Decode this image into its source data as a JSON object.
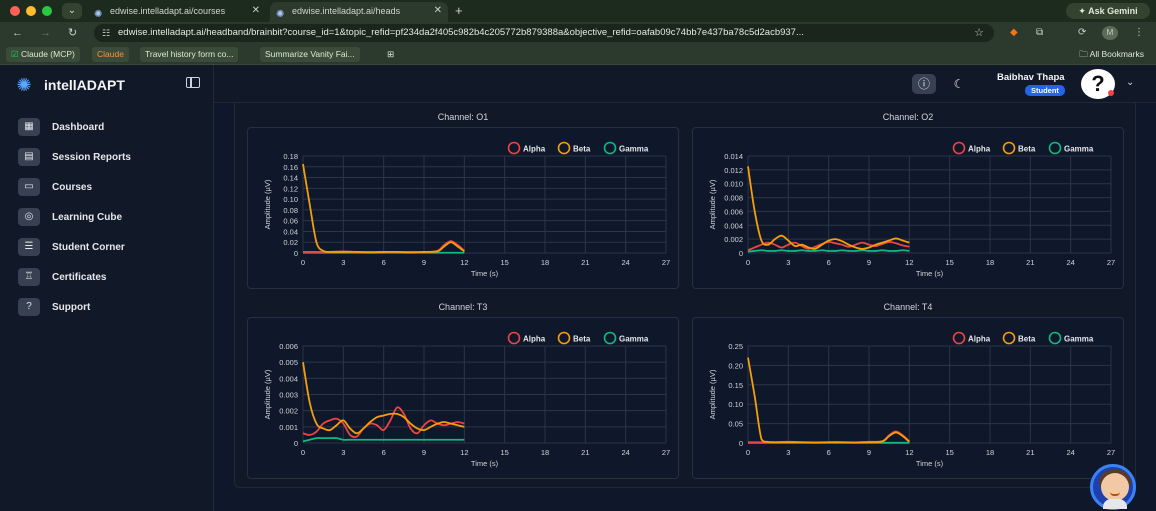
{
  "browser": {
    "tabs": [
      {
        "title": "edwise.intelladapt.ai/courses",
        "active": false
      },
      {
        "title": "edwise.intelladapt.ai/heads",
        "active": true
      }
    ],
    "url": "edwise.intelladapt.ai/headband/brainbit?course_id=1&topic_refid=pf234da2f405c982b4c205772b879388a&objective_refid=oafab09c74bb7e437ba78c5d2acb937...",
    "ask_gemini": "Ask Gemini",
    "bookmarks": [
      "Claude (MCP)",
      "Claude",
      "Travel history form co...",
      "Summarize Vanity Fai..."
    ],
    "all_bookmarks": "All Bookmarks",
    "profile_initial": "M"
  },
  "app": {
    "brand": "intellADAPT",
    "nav": [
      {
        "label": "Dashboard",
        "icon": "dashboard-icon"
      },
      {
        "label": "Session Reports",
        "icon": "report-icon"
      },
      {
        "label": "Courses",
        "icon": "courses-icon"
      },
      {
        "label": "Learning Cube",
        "icon": "cube-icon"
      },
      {
        "label": "Student Corner",
        "icon": "student-corner-icon"
      },
      {
        "label": "Certificates",
        "icon": "certificate-icon"
      },
      {
        "label": "Support",
        "icon": "support-icon"
      }
    ],
    "user": {
      "name": "Baibhav Thapa",
      "role": "Student",
      "avatar": "?"
    }
  },
  "legend": [
    "Alpha",
    "Beta",
    "Gamma"
  ],
  "colors": {
    "alpha": "#ef4444",
    "beta": "#f59e0b",
    "gamma": "#10b981"
  },
  "chart_data": [
    {
      "type": "line",
      "title": "Channel: O1",
      "xlabel": "Time (s)",
      "ylabel": "Amplitude (µV)",
      "xlim": [
        0,
        27
      ],
      "xticks": [
        "0",
        "3",
        "6",
        "9",
        "12",
        "15",
        "18",
        "21",
        "24",
        "27"
      ],
      "ylim": [
        0,
        0.18
      ],
      "yticks": [
        "0",
        "0.02",
        "0.04",
        "0.06",
        "0.08",
        "0.10",
        "0.12",
        "0.14",
        "0.16",
        "0.18"
      ],
      "x": [
        0,
        0.5,
        1,
        1.5,
        2,
        3,
        4,
        5,
        6,
        7,
        8,
        9,
        10,
        10.5,
        11,
        11.5,
        12
      ],
      "series": [
        {
          "name": "Alpha",
          "values": [
            0.002,
            0.002,
            0.002,
            0.002,
            0.002,
            0.003,
            0.002,
            0.002,
            0.002,
            0.002,
            0.002,
            0.002,
            0.004,
            0.015,
            0.022,
            0.015,
            0.004
          ]
        },
        {
          "name": "Beta",
          "values": [
            0.165,
            0.09,
            0.02,
            0.004,
            0.002,
            0.002,
            0.002,
            0.001,
            0.002,
            0.002,
            0.001,
            0.002,
            0.003,
            0.012,
            0.02,
            0.012,
            0.003
          ]
        },
        {
          "name": "Gamma",
          "values": [
            0.0005,
            0.0005,
            0.0005,
            0.0005,
            0.0005,
            0.0005,
            0.0005,
            0.0005,
            0.0005,
            0.0005,
            0.0005,
            0.0005,
            0.0005,
            0.0005,
            0.0005,
            0.0005,
            0.0005
          ]
        }
      ],
      "legend_position": "top-right",
      "grid": true
    },
    {
      "type": "line",
      "title": "Channel: O2",
      "xlabel": "Time (s)",
      "ylabel": "Amplitude (µV)",
      "xlim": [
        0,
        27
      ],
      "xticks": [
        "0",
        "3",
        "6",
        "9",
        "12",
        "15",
        "18",
        "21",
        "24",
        "27"
      ],
      "ylim": [
        0,
        0.014
      ],
      "yticks": [
        "0",
        "0.002",
        "0.004",
        "0.006",
        "0.008",
        "0.010",
        "0.012",
        "0.014"
      ],
      "x": [
        0,
        0.5,
        1,
        1.5,
        2,
        2.5,
        3,
        3.5,
        4,
        4.5,
        5,
        5.5,
        6,
        6.5,
        7,
        7.5,
        8,
        8.5,
        9,
        9.5,
        10,
        10.5,
        11,
        11.5,
        12
      ],
      "series": [
        {
          "name": "Alpha",
          "values": [
            0.0004,
            0.0008,
            0.0012,
            0.0015,
            0.0012,
            0.0008,
            0.0012,
            0.0015,
            0.001,
            0.0006,
            0.0009,
            0.0013,
            0.0016,
            0.0014,
            0.0012,
            0.0009,
            0.0012,
            0.0015,
            0.0012,
            0.001,
            0.0013,
            0.0016,
            0.0014,
            0.0011,
            0.0009
          ]
        },
        {
          "name": "Beta",
          "values": [
            0.0125,
            0.006,
            0.0018,
            0.0012,
            0.002,
            0.0025,
            0.0018,
            0.001,
            0.0012,
            0.0008,
            0.0006,
            0.0012,
            0.0018,
            0.002,
            0.0017,
            0.0012,
            0.0008,
            0.0006,
            0.0008,
            0.0012,
            0.0015,
            0.0018,
            0.0021,
            0.0018,
            0.0015
          ]
        },
        {
          "name": "Gamma",
          "values": [
            0.0002,
            0.0003,
            0.0004,
            0.0003,
            0.0003,
            0.0004,
            0.0003,
            0.0003,
            0.0004,
            0.0003,
            0.0003,
            0.0004,
            0.0003,
            0.0003,
            0.0004,
            0.0003,
            0.0003,
            0.0004,
            0.0003,
            0.0003,
            0.0004,
            0.0003,
            0.0003,
            0.0004,
            0.0003
          ]
        }
      ],
      "legend_position": "top-right",
      "grid": true
    },
    {
      "type": "line",
      "title": "Channel: T3",
      "xlabel": "Time (s)",
      "ylabel": "Amplitude (µV)",
      "xlim": [
        0,
        27
      ],
      "xticks": [
        "0",
        "3",
        "6",
        "9",
        "12",
        "15",
        "18",
        "21",
        "24",
        "27"
      ],
      "ylim": [
        0,
        0.006
      ],
      "yticks": [
        "0",
        "0.001",
        "0.002",
        "0.003",
        "0.004",
        "0.005",
        "0.006"
      ],
      "x": [
        0,
        0.5,
        1,
        1.5,
        2,
        2.5,
        3,
        3.5,
        4,
        4.5,
        5,
        5.5,
        6,
        6.5,
        7,
        7.5,
        8,
        8.5,
        9,
        9.5,
        10,
        10.5,
        11,
        11.5,
        12
      ],
      "series": [
        {
          "name": "Alpha",
          "values": [
            0.0006,
            0.0005,
            0.0007,
            0.0012,
            0.0014,
            0.0015,
            0.0012,
            0.0005,
            0.0004,
            0.0009,
            0.0012,
            0.0011,
            0.0008,
            0.0014,
            0.0022,
            0.0018,
            0.0009,
            0.0006,
            0.0011,
            0.0014,
            0.0012,
            0.0011,
            0.0012,
            0.0013,
            0.0012
          ]
        },
        {
          "name": "Beta",
          "values": [
            0.005,
            0.0025,
            0.0012,
            0.0009,
            0.0008,
            0.0011,
            0.0014,
            0.0009,
            0.0006,
            0.0009,
            0.0013,
            0.0016,
            0.0017,
            0.0018,
            0.0018,
            0.0016,
            0.0012,
            0.0009,
            0.0008,
            0.001,
            0.0012,
            0.0013,
            0.0012,
            0.0011,
            0.001
          ]
        },
        {
          "name": "Gamma",
          "values": [
            0.0001,
            0.0002,
            0.0003,
            0.0003,
            0.0003,
            0.0003,
            0.0002,
            0.0002,
            0.0002,
            0.0002,
            0.0002,
            0.0002,
            0.0002,
            0.0002,
            0.0002,
            0.0002,
            0.0002,
            0.0002,
            0.0002,
            0.0002,
            0.0002,
            0.0002,
            0.0002,
            0.0002,
            0.0002
          ]
        }
      ],
      "legend_position": "top-right",
      "grid": true
    },
    {
      "type": "line",
      "title": "Channel: T4",
      "xlabel": "Time (s)",
      "ylabel": "Amplitude (µV)",
      "xlim": [
        0,
        27
      ],
      "xticks": [
        "0",
        "3",
        "6",
        "9",
        "12",
        "15",
        "18",
        "21",
        "24",
        "27"
      ],
      "ylim": [
        0,
        0.25
      ],
      "yticks": [
        "0",
        "0.05",
        "0.10",
        "0.15",
        "0.20",
        "0.25"
      ],
      "x": [
        0,
        0.5,
        1,
        1.5,
        2,
        3,
        4,
        5,
        6,
        7,
        8,
        9,
        10,
        10.5,
        11,
        11.5,
        12
      ],
      "series": [
        {
          "name": "Alpha",
          "values": [
            0.002,
            0.002,
            0.002,
            0.002,
            0.002,
            0.003,
            0.002,
            0.002,
            0.002,
            0.002,
            0.002,
            0.003,
            0.005,
            0.02,
            0.03,
            0.02,
            0.004
          ]
        },
        {
          "name": "Beta",
          "values": [
            0.22,
            0.12,
            0.01,
            0.003,
            0.002,
            0.002,
            0.002,
            0.001,
            0.002,
            0.002,
            0.001,
            0.002,
            0.004,
            0.018,
            0.027,
            0.018,
            0.003
          ]
        },
        {
          "name": "Gamma",
          "values": [
            0.0005,
            0.0005,
            0.0005,
            0.0005,
            0.0005,
            0.0005,
            0.0005,
            0.0005,
            0.0005,
            0.0005,
            0.0005,
            0.0005,
            0.0005,
            0.0005,
            0.0005,
            0.0005,
            0.0005
          ]
        }
      ],
      "legend_position": "top-right",
      "grid": true
    }
  ]
}
